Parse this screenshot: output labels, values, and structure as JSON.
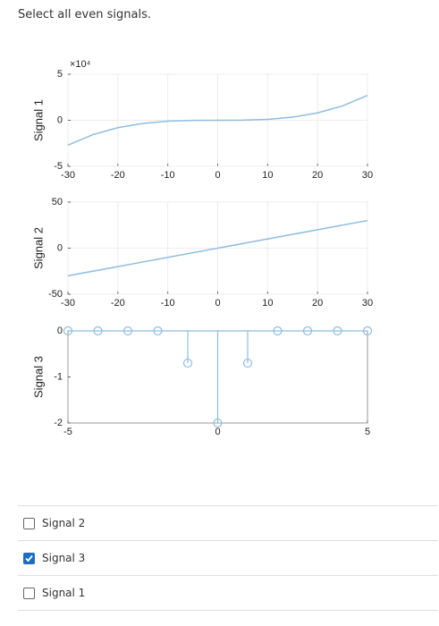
{
  "question": "Select all even signals.",
  "chart_data": [
    {
      "type": "line",
      "y_label": "Signal 1",
      "y_multiplier": "×10⁴",
      "color": "#8fbde0",
      "grid": true,
      "x": [
        -30,
        -25,
        -20,
        -15,
        -10,
        -5,
        0,
        5,
        10,
        15,
        20,
        25,
        30
      ],
      "values": [
        -2.7,
        -1.56,
        -0.8,
        -0.34,
        -0.1,
        -0.01,
        0,
        0.01,
        0.1,
        0.34,
        0.8,
        1.56,
        2.7
      ],
      "xlim": [
        -30,
        30
      ],
      "xticks": [
        -30,
        -20,
        -10,
        0,
        10,
        20,
        30
      ],
      "ylim": [
        -5,
        5
      ],
      "yticks": [
        -5,
        0,
        5
      ]
    },
    {
      "type": "line",
      "y_label": "Signal 2",
      "color": "#8fbde0",
      "grid": true,
      "x": [
        -30,
        30
      ],
      "values": [
        -30,
        30
      ],
      "xlim": [
        -30,
        30
      ],
      "xticks": [
        -30,
        -20,
        -10,
        0,
        10,
        20,
        30
      ],
      "ylim": [
        -50,
        50
      ],
      "yticks": [
        -50,
        0,
        50
      ]
    },
    {
      "type": "stem",
      "y_label": "Signal 3",
      "color": "#8fbde0",
      "grid": false,
      "x": [
        -5,
        -4,
        -3,
        -2,
        -1,
        0,
        1,
        2,
        3,
        4,
        5
      ],
      "values": [
        0,
        0,
        0,
        0,
        -0.7,
        -2,
        -0.7,
        0,
        0,
        0,
        0
      ],
      "xlim": [
        -5,
        5
      ],
      "xticks": [
        -5,
        0,
        5
      ],
      "ylim": [
        -2,
        0
      ],
      "yticks": [
        -2,
        -1,
        0
      ]
    }
  ],
  "options": [
    {
      "label": "Signal 2",
      "checked": false
    },
    {
      "label": "Signal 3",
      "checked": true
    },
    {
      "label": "Signal 1",
      "checked": false
    }
  ]
}
